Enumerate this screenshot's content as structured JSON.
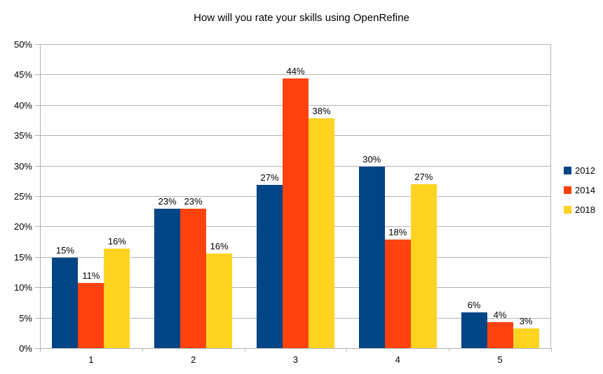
{
  "chart_data": {
    "type": "bar",
    "title": "How will you rate your skills using OpenRefine",
    "xlabel": "",
    "ylabel": "",
    "categories": [
      "1",
      "2",
      "3",
      "4",
      "5"
    ],
    "series": [
      {
        "name": "2012",
        "color": "#004586",
        "values": [
          14.9,
          22.9,
          26.8,
          29.8,
          5.9
        ],
        "labels": [
          "15%",
          "23%",
          "27%",
          "30%",
          "6%"
        ]
      },
      {
        "name": "2014",
        "color": "#FF420E",
        "values": [
          10.7,
          22.9,
          44.3,
          17.9,
          4.3
        ],
        "labels": [
          "11%",
          "23%",
          "44%",
          "18%",
          "4%"
        ]
      },
      {
        "name": "2018",
        "color": "#FFD320",
        "values": [
          16.4,
          15.6,
          37.8,
          27.0,
          3.2
        ],
        "labels": [
          "16%",
          "16%",
          "38%",
          "27%",
          "3%"
        ]
      }
    ],
    "ylim": [
      0,
      50
    ],
    "y_ticks": [
      "0%",
      "5%",
      "10%",
      "15%",
      "20%",
      "25%",
      "30%",
      "35%",
      "40%",
      "45%",
      "50%"
    ],
    "grid": true,
    "legend_position": "right",
    "colors": {
      "gridline": "#B3B3B3",
      "axis": "#B3B3B3",
      "text": "#000000",
      "background": "#FFFFFF"
    }
  }
}
